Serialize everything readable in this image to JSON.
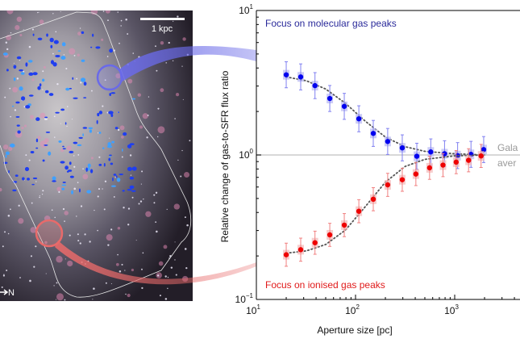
{
  "image_panel": {
    "scale_bar_label": "1 kpc",
    "compass_label": "N",
    "molecular_highlight_color": "#6a6ae8",
    "ionised_highlight_color": "#e86a6a"
  },
  "chart_data": {
    "type": "scatter",
    "xscale": "log",
    "yscale": "log",
    "xlim": [
      10,
      5000
    ],
    "ylim": [
      0.1,
      10
    ],
    "xlabel": "Aperture size [pc]",
    "ylabel": "Relative change of gas-to-SFR flux ratio",
    "x_ticks": [
      {
        "base": "10",
        "exp": "1"
      },
      {
        "base": "10",
        "exp": "2"
      },
      {
        "base": "10",
        "exp": "3"
      }
    ],
    "y_ticks": [
      {
        "base": "10",
        "exp": "−1"
      },
      {
        "base": "10",
        "exp": "0"
      },
      {
        "base": "10",
        "exp": "1"
      }
    ],
    "grid": false,
    "reference_line": {
      "y": 1,
      "label_line1": "Gala",
      "label_line2": "aver",
      "color": "#aaaaaa"
    },
    "series": [
      {
        "name": "Focus on molecular gas peaks",
        "color": "#0000ee",
        "x": [
          20,
          28,
          39,
          55,
          77,
          108,
          151,
          211,
          296,
          415,
          574,
          790,
          1070,
          1460,
          1960
        ],
        "y": [
          3.59,
          3.47,
          3.02,
          2.46,
          2.17,
          1.78,
          1.41,
          1.24,
          1.12,
          0.98,
          1.05,
          1.02,
          0.99,
          1.01,
          1.09
        ],
        "err_dex": 0.09,
        "model": {
          "x": [
            20,
            32,
            50,
            79,
            126,
            200,
            316,
            501,
            1000,
            1995
          ],
          "y": [
            3.47,
            3.26,
            2.86,
            2.28,
            1.71,
            1.33,
            1.14,
            1.06,
            1.02,
            1.0
          ]
        }
      },
      {
        "name": "Focus on ionised gas peaks",
        "color": "#ee0000",
        "x": [
          20,
          28,
          39,
          55,
          77,
          108,
          151,
          211,
          296,
          406,
          558,
          762,
          1035,
          1380,
          1845
        ],
        "y": [
          0.204,
          0.221,
          0.247,
          0.28,
          0.327,
          0.408,
          0.494,
          0.621,
          0.674,
          0.738,
          0.815,
          0.851,
          0.892,
          0.919,
          0.985
        ],
        "err_dex": 0.08,
        "model": {
          "x": [
            20,
            32,
            50,
            79,
            126,
            200,
            316,
            501,
            1000,
            1995
          ],
          "y": [
            0.209,
            0.217,
            0.24,
            0.302,
            0.44,
            0.648,
            0.833,
            0.933,
            0.986,
            1.0
          ]
        }
      }
    ]
  }
}
